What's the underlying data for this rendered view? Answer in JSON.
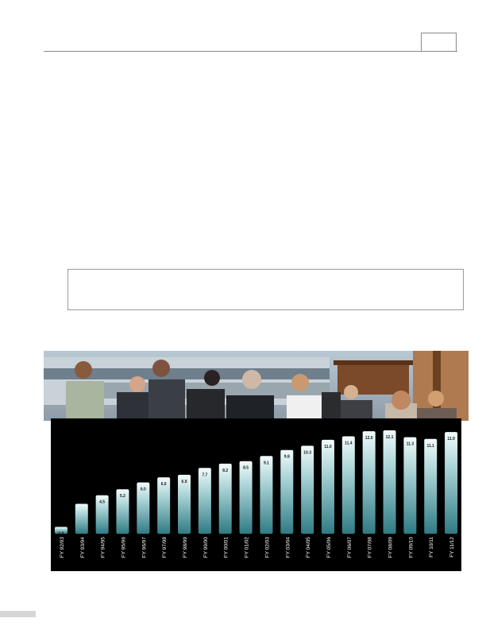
{
  "chart_data": {
    "type": "bar",
    "categories": [
      "FY 92/93",
      "FY 93/94",
      "FY 94/95",
      "FY 95/96",
      "FY 96/97",
      "FY 97/98",
      "FY 98/99",
      "FY 99/00",
      "FY 00/01",
      "FY 01/02",
      "FY 02/03",
      "FY 03/04",
      "FY 04/05",
      "FY 05/06",
      "FY 06/07",
      "FY 07/08",
      "FY 08/09",
      "FY 09/10",
      "FY 10/11",
      "FY 11/12"
    ],
    "values": [
      0.8,
      3.5,
      4.5,
      5.2,
      6.0,
      6.6,
      6.9,
      7.7,
      8.2,
      8.5,
      9.1,
      9.8,
      10.3,
      11.0,
      11.4,
      12.0,
      12.1,
      11.3,
      11.1,
      11.9
    ],
    "labels": [
      "0.8",
      "",
      "4.5",
      "5.2",
      "6.0",
      "6.6",
      "6.9",
      "7.7",
      "8.2",
      "8.5",
      "9.1",
      "9.8",
      "10.3",
      "11.0",
      "11.4",
      "12.0",
      "12.1",
      "11.3",
      "11.1",
      "11.9"
    ],
    "ylim": [
      0,
      13.5
    ],
    "grid": false,
    "colors": {
      "bar_top": "#f2fbfb",
      "bar_mid": "#a9d3d6",
      "bar_bottom": "#2f7b84",
      "background": "#000000",
      "label": "#ffffff"
    }
  }
}
